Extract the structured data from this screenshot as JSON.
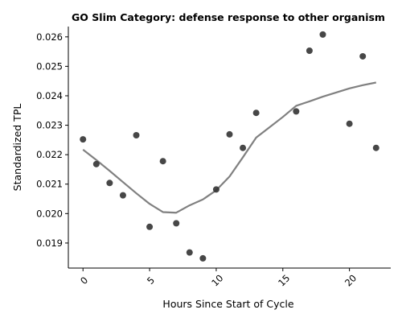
{
  "chart_data": {
    "type": "scatter",
    "title": "GO Slim Category: defense response to other organism",
    "xlabel": "Hours Since Start of Cycle",
    "ylabel": "Standardized TPL",
    "xlim": [
      -1.1,
      23.1
    ],
    "ylim": [
      0.01815,
      0.02635
    ],
    "xticks": [
      0,
      5,
      10,
      15,
      20
    ],
    "yticks": [
      0.019,
      0.02,
      0.021,
      0.022,
      0.023,
      0.024,
      0.025,
      0.026
    ],
    "ytick_labels": [
      "0.019",
      "0.020",
      "0.021",
      "0.022",
      "0.023",
      "0.024",
      "0.025",
      "0.026"
    ],
    "grid": false,
    "series": [
      {
        "kind": "scatter",
        "color": "#333333",
        "x": [
          0,
          1,
          2,
          3,
          4,
          5,
          6,
          7,
          8,
          9,
          10,
          11,
          12,
          13,
          16,
          17,
          18,
          20,
          21,
          22
        ],
        "y": [
          0.02252,
          0.02168,
          0.02104,
          0.02062,
          0.02266,
          0.01955,
          0.02178,
          0.01967,
          0.01868,
          0.01848,
          0.02082,
          0.02269,
          0.02223,
          0.02342,
          0.02347,
          0.02553,
          0.02608,
          0.02305,
          0.02534,
          0.02223
        ]
      },
      {
        "kind": "line",
        "color": "#808080",
        "x": [
          0,
          1,
          2,
          3,
          4,
          5,
          6,
          7,
          8,
          9,
          10,
          11,
          12,
          13,
          14,
          15,
          16,
          17,
          18,
          19,
          20,
          21,
          22
        ],
        "y": [
          0.02217,
          0.02182,
          0.02145,
          0.02107,
          0.02069,
          0.02033,
          0.02005,
          0.02003,
          0.02028,
          0.02048,
          0.02079,
          0.02126,
          0.02191,
          0.02258,
          0.02293,
          0.02328,
          0.02366,
          0.02381,
          0.02397,
          0.02411,
          0.02425,
          0.02436,
          0.02445
        ]
      }
    ]
  }
}
